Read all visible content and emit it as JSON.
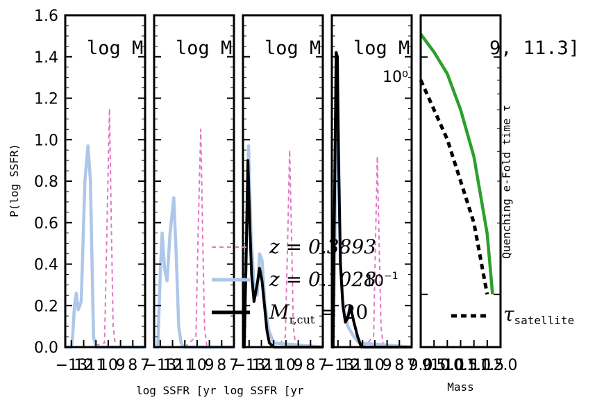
{
  "chart_data": [
    {
      "type": "line",
      "panel_title": "log M",
      "xlabel": "log SSFR [yr",
      "ylabel": "P(log SSFR)",
      "ylim": [
        0.0,
        1.6
      ],
      "y_ticks": [
        "0.0",
        "0.2",
        "0.4",
        "0.6",
        "0.8",
        "1.0",
        "1.2",
        "1.4",
        "1.6"
      ],
      "x_ticks": [
        "−13",
        "12",
        "11",
        "10",
        "9",
        "8",
        "7"
      ],
      "xlim": [
        -13.5,
        -7.0
      ],
      "series": [
        {
          "name": "z = 0.3893",
          "style": "dashed",
          "color": "#e377c2",
          "x": [
            -13.5,
            -12.2,
            -11.4,
            -10.3,
            -10.1,
            -9.9,
            -9.75,
            -9.6,
            -9.4,
            -7.0
          ],
          "y": [
            0,
            0,
            0.0,
            0.02,
            0.6,
            1.15,
            0.6,
            0.1,
            0,
            0
          ]
        },
        {
          "name": "z = 0.1028",
          "style": "solid",
          "color": "#aec7e8",
          "x": [
            -13.5,
            -13.0,
            -12.9,
            -12.75,
            -12.6,
            -12.45,
            -12.2,
            -11.9,
            -11.65,
            -11.45,
            -11.3,
            -11.2,
            -11.0,
            -7.0
          ],
          "y": [
            0,
            0,
            0.05,
            0.2,
            0.26,
            0.18,
            0.22,
            0.8,
            0.97,
            0.8,
            0.35,
            0.05,
            0,
            0
          ]
        }
      ]
    },
    {
      "type": "line",
      "panel_title": "log M",
      "xlabel": "",
      "ylim": [
        0.0,
        1.6
      ],
      "x_ticks": [
        "−13",
        "12",
        "11",
        "10",
        "9",
        "8",
        "7"
      ],
      "xlim": [
        -13.5,
        -7.0
      ],
      "series": [
        {
          "name": "z = 0.3893",
          "style": "dashed",
          "color": "#e377c2",
          "x": [
            -13.5,
            -11.8,
            -11.0,
            -10.1,
            -9.9,
            -9.7,
            -9.55,
            -9.4,
            -9.2,
            -7.0
          ],
          "y": [
            0,
            0,
            0.0,
            0.05,
            0.6,
            1.05,
            0.55,
            0.1,
            0,
            0
          ]
        },
        {
          "name": "z = 0.1028",
          "style": "solid",
          "color": "#aec7e8",
          "x": [
            -13.5,
            -13.2,
            -13.0,
            -12.85,
            -12.65,
            -12.45,
            -12.2,
            -11.9,
            -11.7,
            -11.5,
            -11.3,
            -11.1,
            -7.0
          ],
          "y": [
            0,
            0,
            0.35,
            0.55,
            0.38,
            0.32,
            0.55,
            0.72,
            0.45,
            0.1,
            0.02,
            0,
            0
          ]
        }
      ]
    },
    {
      "type": "line",
      "panel_title": "log M",
      "xlabel": "log SSFR [yr",
      "ylim": [
        0.0,
        1.6
      ],
      "x_ticks": [
        "−13",
        "12",
        "11",
        "10",
        "9",
        "8",
        "7"
      ],
      "xlim": [
        -13.5,
        -7.0
      ],
      "series": [
        {
          "name": "z = 0.3893",
          "style": "dashed",
          "color": "#e377c2",
          "x": [
            -13.5,
            -11.5,
            -10.7,
            -10.05,
            -9.85,
            -9.7,
            -9.55,
            -9.4,
            -9.2,
            -7.0
          ],
          "y": [
            0,
            0,
            0.0,
            0.05,
            0.55,
            0.95,
            0.55,
            0.1,
            0,
            0
          ]
        },
        {
          "name": "z = 0.1028",
          "style": "solid",
          "color": "#aec7e8",
          "x": [
            -13.5,
            -13.4,
            -13.2,
            -13.05,
            -12.85,
            -12.6,
            -12.35,
            -12.15,
            -11.95,
            -11.7,
            -11.4,
            -11.0,
            -7.0
          ],
          "y": [
            0,
            0,
            0.6,
            0.97,
            0.55,
            0.3,
            0.25,
            0.45,
            0.42,
            0.2,
            0.08,
            0.02,
            0
          ]
        },
        {
          "name": "M_r,cut = 20",
          "style": "solid",
          "color": "#000000",
          "x": [
            -13.5,
            -13.4,
            -13.25,
            -13.1,
            -12.95,
            -12.8,
            -12.6,
            -12.35,
            -12.15,
            -11.95,
            -11.75,
            -11.55,
            -11.35,
            -11.0,
            -7.0
          ],
          "y": [
            0,
            0,
            0.4,
            0.9,
            0.6,
            0.35,
            0.22,
            0.3,
            0.38,
            0.32,
            0.2,
            0.08,
            0.02,
            0,
            0
          ]
        }
      ]
    },
    {
      "type": "line",
      "panel_title": "log M",
      "xlabel": "",
      "ylim": [
        0.0,
        1.6
      ],
      "x_ticks": [
        "−13",
        "12",
        "11",
        "10",
        "9",
        "8",
        "7"
      ],
      "xlim": [
        -13.5,
        -7.0
      ],
      "series": [
        {
          "name": "z = 0.3893",
          "style": "dashed",
          "color": "#e377c2",
          "x": [
            -13.5,
            -11.0,
            -10.6,
            -10.1,
            -9.95,
            -9.8,
            -9.65,
            -9.5,
            -9.3,
            -7.0
          ],
          "y": [
            0,
            0,
            0.02,
            0.05,
            0.5,
            0.92,
            0.5,
            0.1,
            0,
            0
          ]
        },
        {
          "name": "z = 0.1028",
          "style": "solid",
          "color": "#aec7e8",
          "x": [
            -13.5,
            -13.4,
            -13.25,
            -13.1,
            -12.95,
            -12.8,
            -12.6,
            -12.4,
            -12.2,
            -12.0,
            -11.7,
            -11.3,
            -7.0
          ],
          "y": [
            0,
            0,
            0.5,
            1.42,
            0.95,
            0.4,
            0.22,
            0.15,
            0.1,
            0.08,
            0.05,
            0.02,
            0
          ]
        },
        {
          "name": "M_r,cut = 20",
          "style": "solid",
          "color": "#000000",
          "x": [
            -13.5,
            -13.4,
            -13.3,
            -13.15,
            -13.05,
            -12.95,
            -12.8,
            -12.6,
            -12.4,
            -12.2,
            -12.0,
            -11.7,
            -11.4,
            -11.1,
            -7.0
          ],
          "y": [
            0,
            0,
            0.6,
            1.42,
            1.4,
            0.9,
            0.4,
            0.2,
            0.12,
            0.14,
            0.2,
            0.12,
            0.05,
            0,
            0
          ]
        }
      ]
    },
    {
      "type": "line",
      "panel_title": "9, 11.3]",
      "xlabel": "Mass",
      "ylabel": "Quenching e-Fold time τ",
      "yscale": "log",
      "y_tick_labels": [
        "10⁰",
        "10⁻¹"
      ],
      "x_ticks": [
        "9.0",
        "9.5",
        "10.0",
        "10.5",
        "11.0",
        "11.5",
        "12.0"
      ],
      "xlim": [
        9.0,
        12.0
      ],
      "ylim": [
        0.06,
        1.5
      ],
      "series": [
        {
          "name": "green",
          "style": "solid",
          "color": "#2ca02c",
          "x": [
            9.0,
            9.5,
            10.0,
            10.5,
            11.0,
            11.5,
            11.7
          ],
          "y": [
            1.25,
            1.05,
            0.85,
            0.6,
            0.38,
            0.18,
            0.1
          ]
        },
        {
          "name": "τ satellite",
          "style": "dotted",
          "color": "#000000",
          "x": [
            9.0,
            9.5,
            10.0,
            10.5,
            11.0,
            11.5
          ],
          "y": [
            0.8,
            0.6,
            0.45,
            0.3,
            0.2,
            0.1
          ]
        }
      ]
    }
  ],
  "legend": {
    "entries": [
      "z = 0.3893",
      "z = 0.1028",
      "M",
      "r,cut",
      " = 20"
    ],
    "satellite_label": "τ",
    "satellite_sub": "satellite",
    "overlay_tick": "10",
    "overlay_tick_exp": "−1"
  }
}
